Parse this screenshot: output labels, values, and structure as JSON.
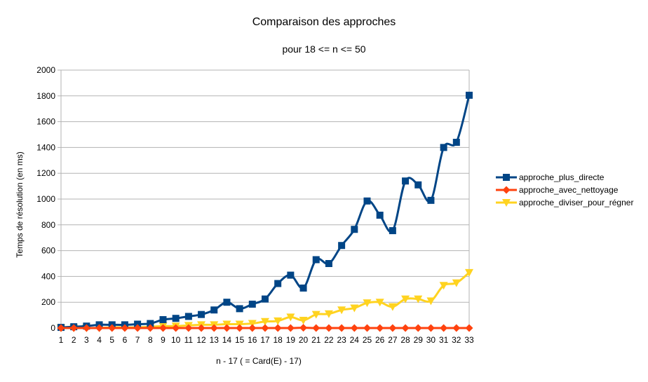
{
  "chart_data": {
    "type": "line",
    "title": "Comparaison des approches",
    "subtitle": "pour 18 <= n <= 50",
    "xlabel": "n - 17 ( = Card(E) - 17)",
    "ylabel": "Temps de résolution (en ms)",
    "ylim": [
      0,
      2000
    ],
    "yticks": [
      0,
      200,
      400,
      600,
      800,
      1000,
      1200,
      1400,
      1600,
      1800,
      2000
    ],
    "grid": true,
    "legend_position": "right",
    "smooth": true,
    "x": [
      1,
      2,
      3,
      4,
      5,
      6,
      7,
      8,
      9,
      10,
      11,
      12,
      13,
      14,
      15,
      16,
      17,
      18,
      19,
      20,
      21,
      22,
      23,
      24,
      25,
      26,
      27,
      28,
      29,
      30,
      31,
      32,
      33
    ],
    "series": [
      {
        "name": "approche_plus_directe",
        "color": "#004586",
        "marker": "square",
        "values": [
          5,
          10,
          15,
          25,
          25,
          25,
          30,
          35,
          65,
          75,
          90,
          105,
          140,
          200,
          150,
          185,
          225,
          345,
          410,
          310,
          530,
          500,
          640,
          765,
          985,
          875,
          755,
          1140,
          1110,
          990,
          1400,
          1440,
          1805
        ]
      },
      {
        "name": "approche_avec_nettoyage",
        "color": "#ff420e",
        "marker": "diamond",
        "values": [
          0,
          0,
          0,
          0,
          0,
          0,
          0,
          0,
          0,
          0,
          0,
          0,
          0,
          0,
          0,
          0,
          0,
          0,
          0,
          2,
          0,
          0,
          0,
          0,
          0,
          0,
          0,
          0,
          0,
          0,
          0,
          0,
          0
        ]
      },
      {
        "name": "approche_diviser_pour_régner",
        "color": "#ffd320",
        "marker": "triangle-down",
        "values": [
          0,
          0,
          0,
          0,
          5,
          5,
          5,
          10,
          15,
          15,
          20,
          25,
          25,
          30,
          30,
          35,
          50,
          55,
          85,
          60,
          105,
          110,
          140,
          155,
          195,
          200,
          165,
          225,
          225,
          210,
          330,
          350,
          430
        ]
      }
    ]
  }
}
